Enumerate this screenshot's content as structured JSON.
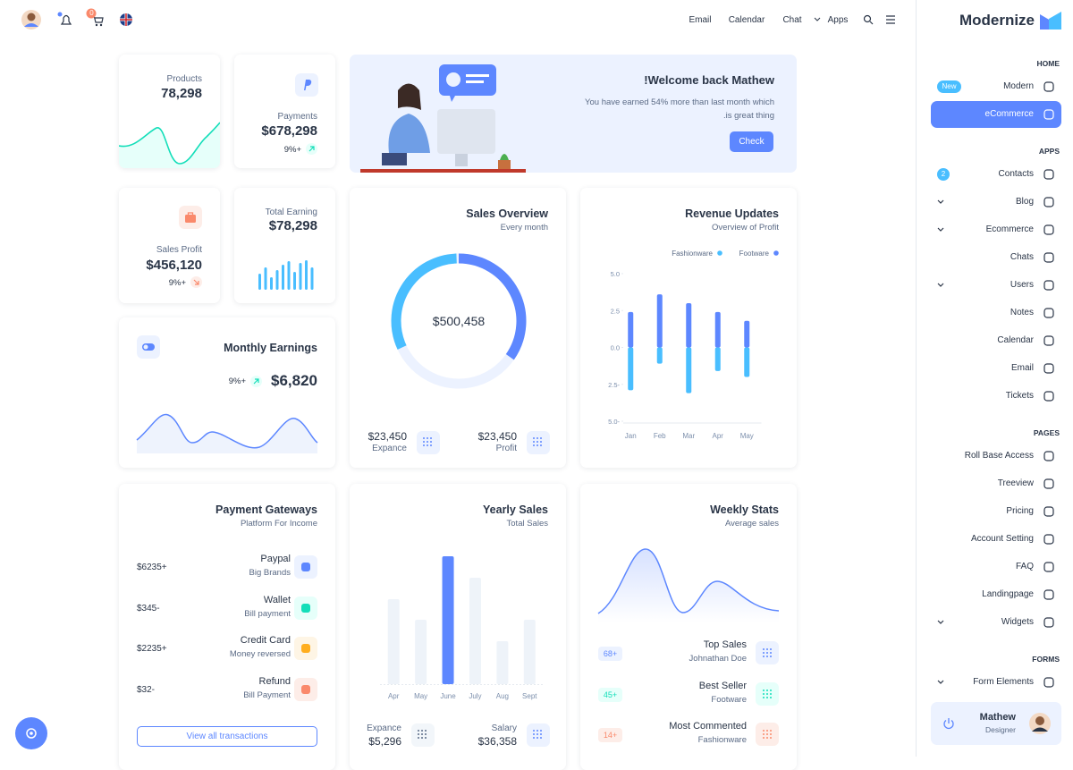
{
  "topbar": {
    "cart_count": "0",
    "nav": [
      "Email",
      "Calendar",
      "Chat",
      "Apps"
    ]
  },
  "sidebar": {
    "brand": "Modernize",
    "sections": [
      {
        "title": "HOME",
        "items": [
          {
            "label": "Modern",
            "badge": "New"
          },
          {
            "label": "eCommerce",
            "active": true
          }
        ]
      },
      {
        "title": "APPS",
        "items": [
          {
            "label": "Contacts",
            "badge": "2"
          },
          {
            "label": "Blog",
            "expandable": true
          },
          {
            "label": "Ecommerce",
            "expandable": true
          },
          {
            "label": "Chats"
          },
          {
            "label": "Users",
            "expandable": true
          },
          {
            "label": "Notes"
          },
          {
            "label": "Calendar"
          },
          {
            "label": "Email"
          },
          {
            "label": "Tickets"
          }
        ]
      },
      {
        "title": "PAGES",
        "items": [
          {
            "label": "Roll Base Access"
          },
          {
            "label": "Treeview"
          },
          {
            "label": "Pricing"
          },
          {
            "label": "Account Setting"
          },
          {
            "label": "FAQ"
          },
          {
            "label": "Landingpage"
          },
          {
            "label": "Widgets",
            "expandable": true
          }
        ]
      },
      {
        "title": "FORMS",
        "items": [
          {
            "label": "Form Elements",
            "expandable": true
          }
        ]
      }
    ],
    "user": {
      "name": "Mathew",
      "role": "Designer"
    }
  },
  "products": {
    "label": "Products",
    "value": "78,298"
  },
  "payments": {
    "label": "Payments",
    "value": "$678,298",
    "change": "9%+"
  },
  "welcome": {
    "title": "!Welcome back Mathew",
    "text": "You have earned 54% more than last month which",
    "text2": ".is great thing",
    "button": "Check"
  },
  "sales_profit": {
    "label": "Sales Profit",
    "value": "$456,120",
    "change": "9%+"
  },
  "total_earning": {
    "label": "Total Earning",
    "value": "$78,298"
  },
  "monthly_earnings": {
    "title": "Monthly Earnings",
    "change": "9%+",
    "value": "$6,820"
  },
  "sales_overview": {
    "title": "Sales Overview",
    "subtitle": "Every month",
    "center": "$500,458",
    "stats": [
      {
        "value": "$23,450",
        "label": "Expance"
      },
      {
        "value": "$23,450",
        "label": "Profit"
      }
    ]
  },
  "revenue_updates": {
    "title": "Revenue Updates",
    "subtitle": "Overview of Profit",
    "chart": {
      "type": "bar",
      "categories": [
        "Jan",
        "Feb",
        "Mar",
        "Apr",
        "May"
      ],
      "series": [
        {
          "name": "Fashionware",
          "color": "#49beff",
          "values": [
            -2.9,
            -1.1,
            -3.1,
            -1.6,
            -2.0
          ]
        },
        {
          "name": "Footware",
          "color": "#5d87ff",
          "values": [
            2.4,
            3.6,
            3.0,
            2.4,
            1.8
          ]
        }
      ],
      "ylim": [
        -5,
        5
      ],
      "yticks": [
        {
          "value": -5,
          "label": "5.0-"
        },
        {
          "value": -2.5,
          "label": "2.5-"
        },
        {
          "value": 0,
          "label": "0.0"
        },
        2.5,
        {
          "value": 5,
          "label": "5.0"
        }
      ]
    }
  },
  "payment_gateways": {
    "title": "Payment Gateways",
    "subtitle": "Platform For Income",
    "items": [
      {
        "name": "Paypal",
        "desc": "Big Brands",
        "amount": "$6235+"
      },
      {
        "name": "Wallet",
        "desc": "Bill payment",
        "amount": "$345-"
      },
      {
        "name": "Credit Card",
        "desc": "Money reversed",
        "amount": "$2235+"
      },
      {
        "name": "Refund",
        "desc": "Bill Payment",
        "amount": "$32-"
      }
    ],
    "button": "View all transactions"
  },
  "yearly_sales": {
    "title": "Yearly Sales",
    "subtitle": "Total Sales",
    "chart": {
      "type": "bar",
      "categories": [
        "Apr",
        "May",
        "June",
        "July",
        "Aug",
        "Sept"
      ],
      "values": [
        95,
        72,
        143,
        119,
        48,
        72
      ],
      "colors": [
        "#eef3f9",
        "#eef3f9",
        "#5d87ff",
        "#eef3f9",
        "#eef3f9",
        "#eef3f9"
      ]
    },
    "stats": [
      {
        "label": "Expance",
        "value": "$5,296"
      },
      {
        "label": "Salary",
        "value": "$36,358"
      }
    ]
  },
  "weekly_stats": {
    "title": "Weekly Stats",
    "subtitle": "Average sales",
    "items": [
      {
        "name": "Top Sales",
        "desc": "Johnathan Doe",
        "badge": "68+"
      },
      {
        "name": "Best Seller",
        "desc": "Footware",
        "badge": "45+"
      },
      {
        "name": "Most Commented",
        "desc": "Fashionware",
        "badge": "14+"
      }
    ]
  }
}
